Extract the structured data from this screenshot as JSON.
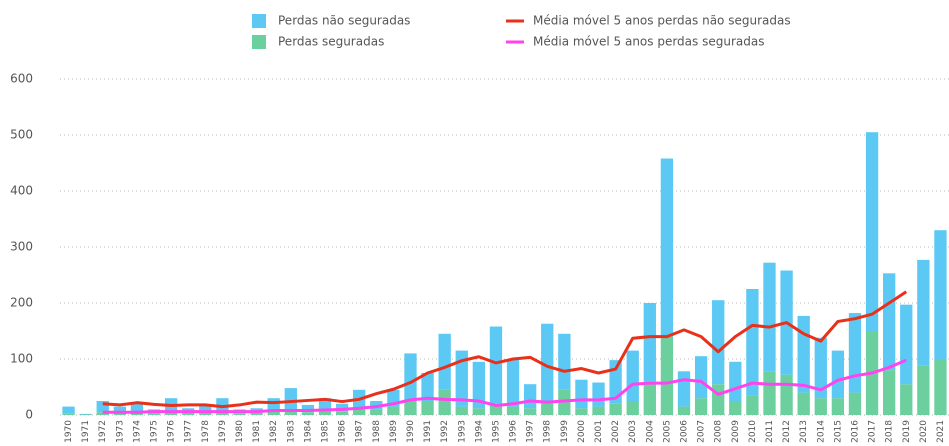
{
  "chart_data": {
    "type": "bar",
    "categories": [
      "1970",
      "1971",
      "1972",
      "1973",
      "1974",
      "1975",
      "1976",
      "1977",
      "1978",
      "1979",
      "1980",
      "1981",
      "1982",
      "1983",
      "1984",
      "1985",
      "1986",
      "1987",
      "1988",
      "1989",
      "1990",
      "1991",
      "1992",
      "1993",
      "1994",
      "1995",
      "1996",
      "1997",
      "1998",
      "1999",
      "2000",
      "2001",
      "2002",
      "2003",
      "2004",
      "2005",
      "2006",
      "2007",
      "2008",
      "2009",
      "2010",
      "2011",
      "2012",
      "2013",
      "2014",
      "2015",
      "2016",
      "2017",
      "2018",
      "2019",
      "2020",
      "2021"
    ],
    "series": [
      {
        "name": "Perdas não seguradas",
        "type": "bar",
        "color": "#5cc8f4",
        "values": [
          12,
          1,
          20,
          11,
          15,
          7,
          24,
          8,
          13,
          24,
          7,
          8,
          22,
          40,
          13,
          22,
          14,
          33,
          15,
          30,
          85,
          50,
          100,
          100,
          83,
          138,
          85,
          43,
          138,
          100,
          51,
          43,
          78,
          90,
          140,
          318,
          63,
          75,
          150,
          70,
          190,
          194,
          186,
          137,
          108,
          85,
          142,
          355,
          173,
          142,
          189,
          230
        ]
      },
      {
        "name": "Perdas seguradas",
        "type": "bar",
        "color": "#6ccf9e",
        "values": [
          3,
          1,
          5,
          4,
          5,
          3,
          6,
          4,
          5,
          6,
          3,
          4,
          8,
          8,
          5,
          8,
          6,
          12,
          10,
          15,
          25,
          25,
          45,
          15,
          12,
          20,
          15,
          12,
          25,
          45,
          12,
          15,
          20,
          25,
          60,
          140,
          15,
          30,
          55,
          25,
          35,
          78,
          72,
          40,
          30,
          30,
          40,
          150,
          80,
          55,
          88,
          100
        ]
      },
      {
        "name": "Média móvel 5 anos perdas não seguradas",
        "type": "line",
        "color": "#e8301a",
        "values": [
          null,
          null,
          20,
          18,
          22,
          19,
          17,
          18,
          18,
          15,
          18,
          23,
          22,
          24,
          26,
          28,
          24,
          28,
          38,
          46,
          58,
          75,
          85,
          97,
          104,
          93,
          100,
          103,
          87,
          78,
          83,
          75,
          82,
          137,
          140,
          140,
          152,
          140,
          113,
          140,
          160,
          157,
          165,
          145,
          132,
          167,
          172,
          180,
          200,
          220,
          null,
          null
        ]
      },
      {
        "name": "Média móvel 5 anos perdas seguradas",
        "type": "line",
        "color": "#ff44ee",
        "values": [
          null,
          null,
          5,
          5,
          5,
          6,
          6,
          6,
          6,
          6,
          6,
          6,
          8,
          8,
          8,
          9,
          10,
          12,
          15,
          20,
          27,
          30,
          28,
          27,
          25,
          17,
          20,
          25,
          23,
          25,
          27,
          27,
          30,
          55,
          57,
          57,
          63,
          60,
          37,
          47,
          57,
          55,
          55,
          53,
          45,
          62,
          70,
          75,
          85,
          98,
          null,
          null
        ]
      }
    ],
    "ylim": [
      0,
      600
    ],
    "yticks": [
      0,
      100,
      200,
      300,
      400,
      500,
      600
    ],
    "grid": true
  }
}
